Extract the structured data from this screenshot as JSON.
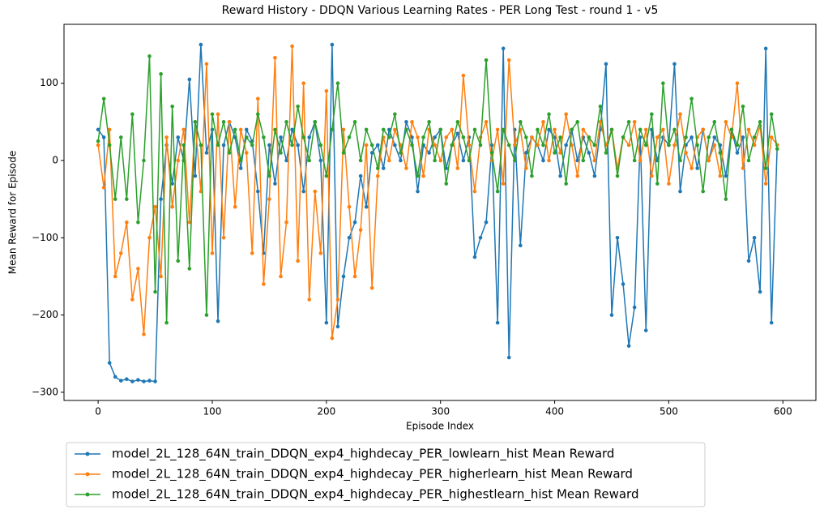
{
  "chart_data": {
    "type": "line",
    "title": "Reward History - DDQN Various Learning Rates - PER Long Test - round 1 - v5",
    "x_label": "Episode Index",
    "y_label": "Mean Reward for Episode",
    "xlim": [
      -29.9,
      628.9
    ],
    "ylim": [
      -310.6,
      176.3
    ],
    "xticks": [
      0,
      100,
      200,
      300,
      400,
      500,
      600
    ],
    "yticks": [
      {
        "value": -300,
        "label": "−300"
      },
      {
        "value": -200,
        "label": "−200"
      },
      {
        "value": -100,
        "label": "−100"
      },
      0,
      100
    ],
    "x": [
      0,
      5,
      10,
      15,
      20,
      25,
      30,
      35,
      40,
      45,
      50,
      55,
      60,
      65,
      70,
      75,
      80,
      85,
      90,
      95,
      100,
      105,
      110,
      115,
      120,
      125,
      130,
      135,
      140,
      145,
      150,
      155,
      160,
      165,
      170,
      175,
      180,
      185,
      190,
      195,
      200,
      205,
      210,
      215,
      220,
      225,
      230,
      235,
      240,
      245,
      250,
      255,
      260,
      265,
      270,
      275,
      280,
      285,
      290,
      295,
      300,
      305,
      310,
      315,
      320,
      325,
      330,
      335,
      340,
      345,
      350,
      355,
      360,
      365,
      370,
      375,
      380,
      385,
      390,
      395,
      400,
      405,
      410,
      415,
      420,
      425,
      430,
      435,
      440,
      445,
      450,
      455,
      460,
      465,
      470,
      475,
      480,
      485,
      490,
      495,
      500,
      505,
      510,
      515,
      520,
      525,
      530,
      535,
      540,
      545,
      550,
      555,
      560,
      565,
      570,
      575,
      580,
      585,
      590,
      595
    ],
    "series": [
      {
        "name": "model_2L_128_64N_train_DDQN_exp4_highdecay_PER_lowlearn_hist Mean Reward",
        "color": "#1f77b4",
        "values": [
          40,
          30,
          -262,
          -280,
          -285,
          -283,
          -286,
          -284,
          -286,
          -285,
          -286,
          -50,
          20,
          -30,
          30,
          0,
          105,
          -20,
          150,
          10,
          40,
          -208,
          20,
          50,
          30,
          -10,
          40,
          25,
          -40,
          -120,
          20,
          -30,
          30,
          0,
          40,
          20,
          -40,
          30,
          50,
          0,
          -210,
          150,
          -215,
          -150,
          -100,
          -80,
          -20,
          -60,
          10,
          20,
          -10,
          40,
          20,
          0,
          50,
          30,
          -40,
          20,
          10,
          30,
          40,
          -10,
          20,
          35,
          0,
          30,
          -125,
          -100,
          -80,
          20,
          -210,
          145,
          -255,
          40,
          -110,
          10,
          30,
          20,
          0,
          40,
          30,
          -20,
          20,
          40,
          0,
          30,
          10,
          -20,
          40,
          125,
          -200,
          -100,
          -160,
          -240,
          -190,
          30,
          -220,
          40,
          0,
          30,
          20,
          125,
          -40,
          20,
          30,
          -10,
          40,
          0,
          30,
          20,
          -20,
          40,
          10,
          30,
          -130,
          -100,
          -170,
          145,
          -210,
          20
        ]
      },
      {
        "name": "model_2L_128_64N_train_DDQN_exp4_highdecay_PER_higherlearn_hist Mean Reward",
        "color": "#ff7f0e",
        "values": [
          20,
          -35,
          40,
          -150,
          -120,
          -80,
          -180,
          -140,
          -225,
          -100,
          -60,
          -150,
          30,
          -60,
          0,
          40,
          -80,
          50,
          -40,
          125,
          -120,
          60,
          -100,
          50,
          -60,
          40,
          10,
          -120,
          80,
          -160,
          -50,
          133,
          -150,
          -80,
          148,
          -130,
          100,
          -180,
          -40,
          -120,
          90,
          -230,
          -180,
          40,
          -60,
          -150,
          -90,
          20,
          -165,
          -20,
          30,
          0,
          40,
          20,
          -10,
          50,
          30,
          -20,
          40,
          20,
          0,
          30,
          40,
          -10,
          110,
          20,
          -40,
          30,
          50,
          0,
          40,
          -30,
          130,
          20,
          40,
          -10,
          30,
          20,
          50,
          0,
          40,
          10,
          60,
          20,
          -20,
          40,
          30,
          0,
          50,
          20,
          40,
          -10,
          30,
          20,
          50,
          0,
          40,
          -20,
          30,
          40,
          -30,
          20,
          60,
          10,
          -10,
          30,
          40,
          0,
          20,
          -20,
          50,
          30,
          100,
          -10,
          40,
          20,
          45,
          -30,
          30,
          20
        ]
      },
      {
        "name": "model_2L_128_64N_train_DDQN_exp4_highdecay_PER_highestlearn_hist Mean Reward",
        "color": "#2ca02c",
        "values": [
          25,
          80,
          20,
          -50,
          30,
          -50,
          60,
          -80,
          0,
          135,
          -170,
          112,
          -210,
          70,
          -130,
          20,
          -140,
          50,
          20,
          -200,
          60,
          20,
          50,
          10,
          40,
          0,
          30,
          20,
          60,
          30,
          -20,
          40,
          10,
          50,
          20,
          70,
          30,
          0,
          50,
          20,
          -20,
          40,
          100,
          10,
          30,
          50,
          0,
          40,
          20,
          -10,
          40,
          30,
          60,
          10,
          40,
          20,
          -20,
          30,
          50,
          0,
          40,
          -30,
          20,
          50,
          30,
          0,
          40,
          20,
          130,
          10,
          -40,
          40,
          20,
          0,
          50,
          30,
          -20,
          40,
          20,
          60,
          10,
          30,
          -30,
          40,
          50,
          0,
          30,
          20,
          70,
          10,
          40,
          -20,
          30,
          50,
          0,
          40,
          20,
          60,
          -30,
          100,
          20,
          40,
          0,
          30,
          80,
          20,
          -40,
          30,
          50,
          10,
          -50,
          40,
          20,
          70,
          0,
          30,
          50,
          -10,
          60,
          15
        ]
      }
    ]
  }
}
